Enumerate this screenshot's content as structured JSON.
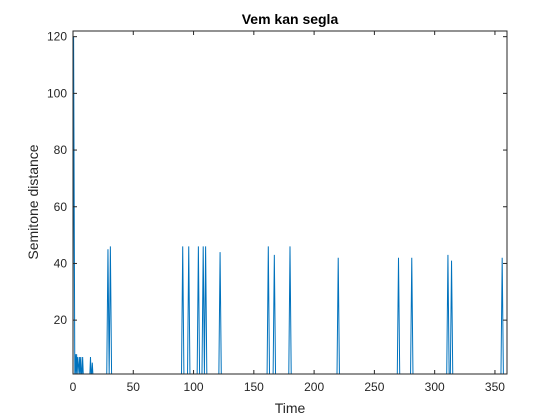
{
  "chart_data": {
    "type": "line",
    "title": "Vem kan segla",
    "xlabel": "Time",
    "ylabel": "Semitone distance",
    "xlim": [
      0,
      360
    ],
    "ylim": [
      1,
      122
    ],
    "xticks": [
      0,
      50,
      100,
      150,
      200,
      250,
      300,
      350
    ],
    "yticks": [
      20,
      40,
      60,
      80,
      100,
      120
    ],
    "grid": false,
    "box": true,
    "line_color": "#0072BD",
    "series": [
      {
        "x": [
          0,
          0.5,
          1,
          1.5,
          2,
          2.5,
          3,
          3.5,
          4,
          5,
          5.5,
          6,
          6.5,
          7,
          7.5,
          8,
          8.5,
          9,
          9.5,
          10,
          10.5,
          11,
          11.5,
          12,
          13,
          14,
          14.5,
          15,
          15.5,
          16,
          16.5,
          17,
          17.5,
          18,
          28,
          29,
          30,
          31,
          32,
          33,
          90,
          91,
          92,
          95,
          96,
          97,
          103,
          104,
          105,
          107,
          108,
          109,
          110,
          111,
          112,
          121,
          122,
          123,
          161,
          162,
          163,
          166,
          167,
          168,
          179,
          180,
          181,
          219,
          220,
          221,
          269,
          270,
          271,
          280,
          281,
          282,
          310,
          311,
          312,
          313,
          314,
          315,
          355,
          356,
          357
        ],
        "y": [
          1,
          120,
          60,
          1,
          8,
          1,
          8,
          1,
          7,
          1,
          7,
          1,
          7,
          1,
          1,
          7,
          1,
          1,
          1,
          1,
          1,
          1,
          1,
          1,
          1,
          1,
          7,
          1,
          1,
          5,
          1,
          1,
          1,
          1,
          1,
          45,
          1,
          46,
          1,
          1,
          1,
          46,
          1,
          1,
          46,
          1,
          1,
          46,
          1,
          1,
          46,
          1,
          46,
          1,
          1,
          1,
          44,
          1,
          1,
          46,
          1,
          1,
          43,
          1,
          1,
          46,
          1,
          1,
          42,
          1,
          1,
          42,
          1,
          1,
          42,
          1,
          1,
          43,
          1,
          1,
          41,
          1,
          1,
          42,
          1
        ]
      }
    ]
  }
}
